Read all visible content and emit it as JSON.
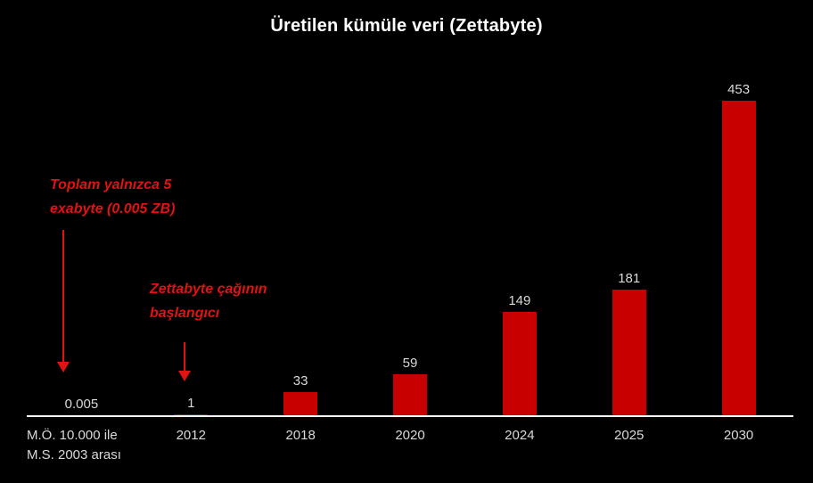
{
  "chart": {
    "title": "Üretilen kümüle veri (Zettabyte)"
  },
  "chart_data": {
    "type": "bar",
    "title": "Üretilen kümüle veri (Zettabyte)",
    "categories": [
      "M.Ö. 10.000 ile\nM.S. 2003 arası",
      "2012",
      "2018",
      "2020",
      "2024",
      "2025",
      "2030"
    ],
    "values": [
      0.005,
      1,
      33,
      59,
      149,
      181,
      453
    ],
    "value_labels": [
      "0.005",
      "1",
      "33",
      "59",
      "149",
      "181",
      "453"
    ],
    "xlabel": "",
    "ylabel": "",
    "ylim": [
      0,
      470
    ],
    "grid": false,
    "legend": false,
    "background_color": "#000000",
    "bar_color": "#c80000",
    "title_color": "#ffffff",
    "label_color": "#d9d9d9",
    "annotation_color": "#e01212",
    "annotations": [
      {
        "text": "Toplam yalnızca 5 exabyte (0.005 ZB)",
        "target_category": "M.Ö. 10.000 ile M.S. 2003 arası"
      },
      {
        "text": "Zettabyte çağının başlangıcı",
        "target_category": "2012"
      }
    ]
  },
  "annotations": {
    "exabyte": {
      "line1": "Toplam yalnızca 5",
      "line2": "exabyte (0.005 ZB)"
    },
    "zettabyte_era": {
      "line1": "Zettabyte çağının",
      "line2": "başlangıcı"
    }
  }
}
